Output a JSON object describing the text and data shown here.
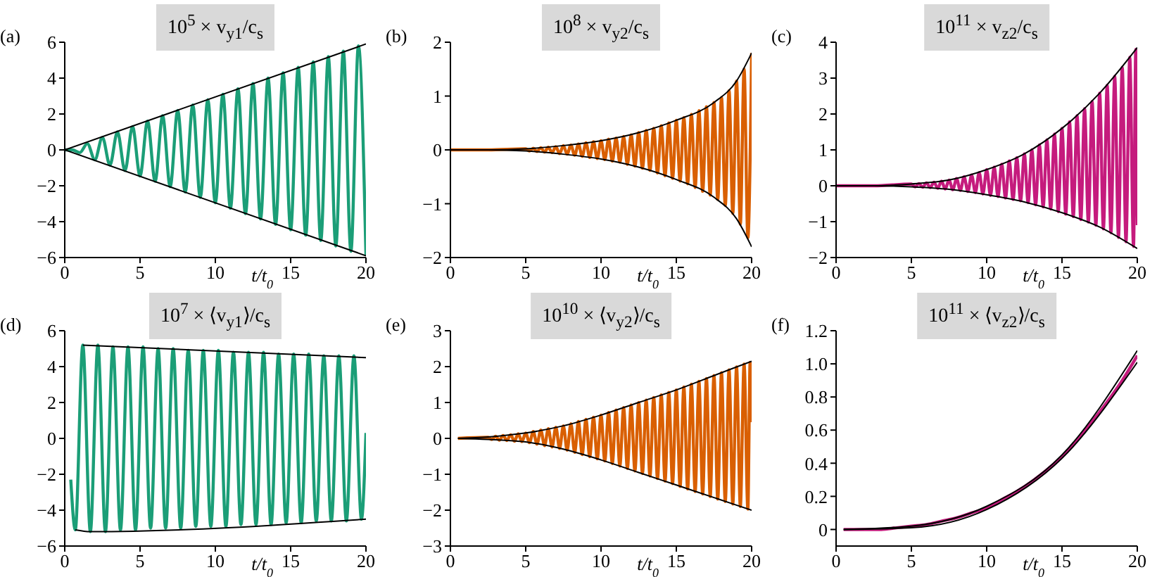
{
  "chart_data": [
    {
      "type": "line",
      "title": "10$^{5}$ × v$_{y1}$/c$_{s}$",
      "xlabel": "t/t$_{0}$",
      "annotations": [
        "(a)"
      ],
      "xlim": [
        0,
        20
      ],
      "xticks": [
        0,
        5,
        10,
        15,
        20
      ],
      "ylim": [
        -6,
        6
      ],
      "yticks": [
        -6,
        -4,
        -2,
        0,
        2,
        4,
        6
      ],
      "series": [
        {
          "color": "#1b9e77",
          "x": [
            0,
            0.5,
            1,
            1.5,
            2,
            2.5,
            3,
            3.5,
            4,
            4.5,
            5,
            5.5,
            6,
            6.5,
            7,
            7.5,
            8,
            8.5,
            9,
            9.5,
            10,
            10.5,
            11,
            11.5,
            12,
            12.5,
            13,
            13.5,
            14,
            14.5,
            15,
            15.5,
            16,
            16.5,
            17,
            17.5,
            18,
            18.5,
            19,
            19.5,
            20
          ],
          "values": [
            0,
            0,
            -0.15,
            0.35,
            -0.55,
            0.7,
            -0.85,
            1.0,
            -1.15,
            1.3,
            -1.45,
            1.6,
            -1.75,
            1.9,
            -2.05,
            2.2,
            -2.35,
            2.5,
            -2.65,
            2.8,
            -2.95,
            3.1,
            -3.25,
            3.4,
            -3.55,
            3.7,
            -3.85,
            4.0,
            -4.15,
            4.3,
            -4.45,
            4.6,
            -4.75,
            4.9,
            -5.05,
            5.2,
            -5.35,
            5.5,
            -5.65,
            5.8,
            -5.9
          ]
        },
        {
          "color": "#000000",
          "x": [
            0,
            20
          ],
          "values": [
            0,
            5.9
          ]
        },
        {
          "color": "#000000",
          "x": [
            0,
            20
          ],
          "values": [
            0,
            -5.9
          ]
        }
      ]
    },
    {
      "type": "line",
      "title": "10$^{8}$ × v$_{y2}$/c$_{s}$",
      "xlabel": "t/t$_{0}$",
      "annotations": [
        "(b)"
      ],
      "xlim": [
        0,
        20
      ],
      "xticks": [
        0,
        5,
        10,
        15,
        20
      ],
      "ylim": [
        -2,
        2
      ],
      "yticks": [
        -2,
        -1,
        0,
        1,
        2
      ],
      "series": [
        {
          "color": "#d95f02",
          "x": [
            0,
            2.5,
            5,
            5.25,
            5.5,
            5.75,
            6,
            6.25,
            6.5,
            6.75,
            7,
            7.25,
            7.5,
            7.75,
            8,
            8.25,
            8.5,
            8.75,
            9,
            9.25,
            9.5,
            9.75,
            10,
            10.25,
            10.5,
            10.75,
            11,
            11.25,
            11.5,
            11.75,
            12,
            12.25,
            12.5,
            12.75,
            13,
            13.25,
            13.5,
            13.75,
            14,
            14.25,
            14.5,
            14.75,
            15,
            15.25,
            15.5,
            15.75,
            16,
            16.25,
            16.5,
            16.75,
            17,
            17.25,
            17.5,
            17.75,
            18,
            18.25,
            18.5,
            18.75,
            19,
            19.25,
            19.5,
            19.75,
            20
          ],
          "values": [
            0,
            0,
            0.02,
            -0.02,
            0.03,
            -0.03,
            0.04,
            -0.04,
            0.05,
            -0.05,
            0.06,
            -0.07,
            0.08,
            -0.08,
            0.09,
            -0.1,
            0.11,
            -0.12,
            0.13,
            -0.14,
            0.15,
            -0.16,
            0.17,
            -0.18,
            0.2,
            -0.21,
            0.22,
            -0.23,
            0.25,
            -0.27,
            0.28,
            -0.3,
            0.32,
            -0.34,
            0.36,
            -0.38,
            0.4,
            -0.43,
            0.45,
            -0.48,
            0.5,
            -0.53,
            0.55,
            -0.58,
            0.6,
            -0.63,
            0.66,
            -0.7,
            0.73,
            -0.77,
            0.8,
            -0.84,
            0.88,
            -0.92,
            0.97,
            -1.03,
            1.1,
            -1.18,
            1.28,
            -1.38,
            1.5,
            -1.63,
            1.8
          ]
        },
        {
          "color": "#000000",
          "x": [
            0,
            2.5,
            5,
            7.5,
            10,
            12.5,
            15,
            17.5,
            19,
            20
          ],
          "values": [
            0,
            0,
            0.02,
            0.08,
            0.17,
            0.32,
            0.55,
            0.88,
            1.28,
            1.8
          ]
        },
        {
          "color": "#000000",
          "x": [
            0,
            2.5,
            5,
            7.5,
            10,
            12.5,
            15,
            17.5,
            19,
            20
          ],
          "values": [
            0,
            0,
            -0.02,
            -0.08,
            -0.17,
            -0.32,
            -0.55,
            -0.88,
            -1.28,
            -1.8
          ]
        }
      ]
    },
    {
      "type": "line",
      "title": "10$^{11}$ × v$_{z2}$/c$_{s}$",
      "xlabel": "t/t$_{0}$",
      "annotations": [
        "(c)"
      ],
      "xlim": [
        0,
        20
      ],
      "xticks": [
        0,
        5,
        10,
        15,
        20
      ],
      "ylim": [
        -2,
        4
      ],
      "yticks": [
        -2,
        -1,
        0,
        1,
        2,
        3,
        4
      ],
      "series": [
        {
          "color": "#c51b7d",
          "x": [
            0,
            2.5,
            5,
            5.25,
            5.5,
            5.75,
            6,
            6.25,
            6.5,
            6.75,
            7,
            7.25,
            7.5,
            7.75,
            8,
            8.25,
            8.5,
            8.75,
            9,
            9.25,
            9.5,
            9.75,
            10,
            10.25,
            10.5,
            10.75,
            11,
            11.25,
            11.5,
            11.75,
            12,
            12.25,
            12.5,
            12.75,
            13,
            13.25,
            13.5,
            13.75,
            14,
            14.25,
            14.5,
            14.75,
            15,
            15.25,
            15.5,
            15.75,
            16,
            16.25,
            16.5,
            16.75,
            17,
            17.25,
            17.5,
            17.75,
            18,
            18.25,
            18.5,
            18.75,
            19,
            19.25,
            19.5,
            19.75,
            19.9,
            20
          ],
          "values": [
            0,
            0,
            0.05,
            -0.03,
            0.06,
            -0.04,
            0.08,
            -0.05,
            0.1,
            -0.07,
            0.13,
            -0.09,
            0.16,
            -0.11,
            0.2,
            -0.13,
            0.25,
            -0.16,
            0.3,
            -0.19,
            0.37,
            -0.23,
            0.45,
            -0.27,
            0.52,
            -0.3,
            0.6,
            -0.34,
            0.69,
            -0.38,
            0.78,
            -0.42,
            0.89,
            -0.47,
            1.0,
            -0.53,
            1.14,
            -0.59,
            1.28,
            -0.65,
            1.44,
            -0.72,
            1.6,
            -0.79,
            1.78,
            -0.86,
            1.95,
            -0.94,
            2.15,
            -1.01,
            2.35,
            -1.1,
            2.58,
            -1.2,
            2.8,
            -1.31,
            3.05,
            -1.44,
            3.3,
            -1.56,
            3.58,
            -1.69,
            3.8,
            -1.1
          ]
        },
        {
          "color": "#000000",
          "x": [
            0,
            2.5,
            5,
            7.5,
            10,
            12.5,
            15,
            17.5,
            20
          ],
          "values": [
            0,
            0,
            0.05,
            0.16,
            0.45,
            0.89,
            1.6,
            2.58,
            3.85
          ]
        },
        {
          "color": "#000000",
          "x": [
            0,
            2.5,
            5,
            7.5,
            10,
            12.5,
            15,
            17.5,
            20
          ],
          "values": [
            0,
            0,
            -0.03,
            -0.1,
            -0.25,
            -0.45,
            -0.75,
            -1.15,
            -1.75
          ]
        }
      ]
    },
    {
      "type": "line",
      "title": "10$^{7}$ × ⟨v$_{y1}$⟩/c$_{s}$",
      "xlabel": "t/t$_{0}$",
      "annotations": [
        "(d)"
      ],
      "xlim": [
        0,
        20
      ],
      "xticks": [
        0,
        5,
        10,
        15,
        20
      ],
      "ylim": [
        -6,
        6
      ],
      "yticks": [
        -6,
        -4,
        -2,
        0,
        2,
        4,
        6
      ],
      "series": [
        {
          "color": "#1b9e77",
          "x": [
            0.4,
            0.7,
            1.2,
            1.7,
            2.2,
            2.7,
            3.2,
            3.7,
            4.2,
            4.7,
            5.2,
            5.7,
            6.2,
            6.7,
            7.2,
            7.7,
            8.2,
            8.7,
            9.2,
            9.7,
            10.2,
            10.7,
            11.2,
            11.7,
            12.2,
            12.7,
            13.2,
            13.7,
            14.2,
            14.7,
            15.2,
            15.7,
            16.2,
            16.7,
            17.2,
            17.7,
            18.2,
            18.7,
            19.2,
            19.7,
            20
          ],
          "values": [
            -2.3,
            -5.1,
            5.2,
            -5.2,
            5.2,
            -5.2,
            5.1,
            -5.1,
            5.1,
            -5.1,
            5.1,
            -5.0,
            5.0,
            -5.0,
            5.0,
            -5.0,
            4.9,
            -4.9,
            4.9,
            -4.9,
            4.9,
            -4.9,
            4.8,
            -4.8,
            4.8,
            -4.8,
            4.8,
            -4.8,
            4.7,
            -4.7,
            4.7,
            -4.7,
            4.7,
            -4.6,
            4.6,
            -4.6,
            4.6,
            -4.6,
            4.6,
            -4.5,
            0.3
          ]
        },
        {
          "color": "#000000",
          "x": [
            1.2,
            20
          ],
          "values": [
            5.2,
            4.5
          ]
        },
        {
          "color": "#000000",
          "x": [
            0.7,
            1.7,
            20
          ],
          "values": [
            -5.1,
            -5.2,
            -4.5
          ]
        }
      ]
    },
    {
      "type": "line",
      "title": "10$^{10}$ × ⟨v$_{y2}$⟩/c$_{s}$",
      "xlabel": "t/t$_{0}$",
      "annotations": [
        "(e)"
      ],
      "xlim": [
        0,
        20
      ],
      "xticks": [
        0,
        5,
        10,
        15,
        20
      ],
      "ylim": [
        -3,
        3
      ],
      "yticks": [
        -3,
        -2,
        -1,
        0,
        1,
        2,
        3
      ],
      "series": [
        {
          "color": "#d95f02",
          "x": [
            0.5,
            2.5,
            2.75,
            3,
            3.25,
            3.5,
            3.75,
            4,
            4.25,
            4.5,
            4.75,
            5,
            5.25,
            5.5,
            5.75,
            6,
            6.25,
            6.5,
            6.75,
            7,
            7.25,
            7.5,
            7.75,
            8,
            8.25,
            8.5,
            8.75,
            9,
            9.25,
            9.5,
            9.75,
            10,
            10.25,
            10.5,
            10.75,
            11,
            11.25,
            11.5,
            11.75,
            12,
            12.25,
            12.5,
            12.75,
            13,
            13.25,
            13.5,
            13.75,
            14,
            14.25,
            14.5,
            14.75,
            15,
            15.25,
            15.5,
            15.75,
            16,
            16.25,
            16.5,
            16.75,
            17,
            17.25,
            17.5,
            17.75,
            18,
            18.25,
            18.5,
            18.75,
            19,
            19.25,
            19.5,
            19.75,
            19.9,
            20
          ],
          "values": [
            0,
            0.03,
            -0.03,
            0.06,
            -0.05,
            0.08,
            -0.06,
            0.1,
            -0.08,
            0.13,
            -0.09,
            0.15,
            -0.12,
            0.19,
            -0.16,
            0.23,
            -0.2,
            0.27,
            -0.24,
            0.31,
            -0.28,
            0.35,
            -0.33,
            0.41,
            -0.39,
            0.47,
            -0.45,
            0.53,
            -0.51,
            0.59,
            -0.57,
            0.65,
            -0.63,
            0.72,
            -0.7,
            0.79,
            -0.77,
            0.86,
            -0.84,
            0.93,
            -0.91,
            1.0,
            -0.98,
            1.07,
            -1.05,
            1.14,
            -1.12,
            1.21,
            -1.19,
            1.28,
            -1.26,
            1.35,
            -1.34,
            1.43,
            -1.41,
            1.51,
            -1.48,
            1.59,
            -1.55,
            1.67,
            -1.62,
            1.75,
            -1.69,
            1.83,
            -1.76,
            1.91,
            -1.83,
            1.99,
            -1.9,
            2.07,
            -1.97,
            2.12,
            0.45
          ]
        },
        {
          "color": "#000000",
          "x": [
            0.5,
            2.5,
            5,
            7.5,
            10,
            12.5,
            15,
            17.5,
            20
          ],
          "values": [
            0,
            0.04,
            0.15,
            0.35,
            0.65,
            1.0,
            1.35,
            1.75,
            2.15
          ]
        },
        {
          "color": "#000000",
          "x": [
            0.5,
            2.5,
            5,
            7.5,
            10,
            12.5,
            15,
            17.5,
            20
          ],
          "values": [
            0,
            -0.03,
            -0.1,
            -0.3,
            -0.6,
            -0.95,
            -1.3,
            -1.65,
            -2.0
          ]
        }
      ]
    },
    {
      "type": "line",
      "title": "10$^{11}$ × ⟨v$_{z2}$⟩/c$_{s}$",
      "xlabel": "t/t$_{0}$",
      "annotations": [
        "(f)"
      ],
      "xlim": [
        0,
        20
      ],
      "xticks": [
        0,
        5,
        10,
        15,
        20
      ],
      "ylim": [
        -0.1,
        1.2
      ],
      "yticks": [
        0,
        0.2,
        0.4,
        0.6,
        0.8,
        {
          "value": 1,
          "label": "1.0"
        },
        1.2
      ],
      "series": [
        {
          "color": "#c51b7d",
          "x": [
            0.5,
            2,
            3,
            4,
            5,
            6,
            7,
            8,
            9,
            10,
            11,
            12,
            13,
            14,
            15,
            16,
            17,
            18,
            19,
            20
          ],
          "values": [
            0,
            0,
            0,
            0.01,
            0.02,
            0.03,
            0.05,
            0.07,
            0.1,
            0.13,
            0.18,
            0.23,
            0.29,
            0.36,
            0.44,
            0.54,
            0.65,
            0.77,
            0.9,
            1.05
          ]
        },
        {
          "color": "#000000",
          "x": [
            0.5,
            5,
            10,
            15,
            20
          ],
          "values": [
            0,
            0.02,
            0.14,
            0.45,
            1.08
          ]
        },
        {
          "color": "#000000",
          "x": [
            0.5,
            5,
            10,
            15,
            20
          ],
          "values": [
            0,
            0.01,
            0.12,
            0.43,
            1.01
          ]
        }
      ]
    }
  ]
}
